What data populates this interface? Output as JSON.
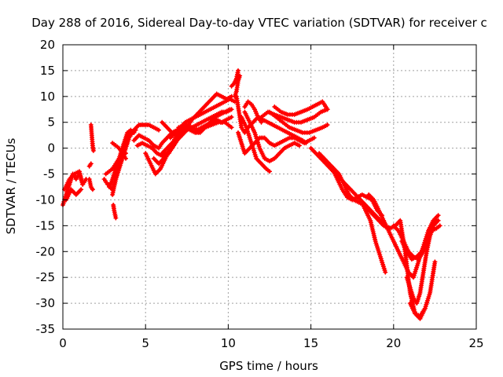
{
  "colors": {
    "series": "#ff0000",
    "grid": "#a0a0a0",
    "frame": "#000000",
    "background": "#ffffff"
  },
  "chart_data": {
    "type": "scatter",
    "marker": "plus",
    "title": "Day 288 of 2016, Sidereal Day-to-day VTEC variation (SDTVAR) for receiver c",
    "xlabel": "GPS time / hours",
    "ylabel": "SDTVAR / TECUs",
    "xlim": [
      0,
      25
    ],
    "ylim": [
      -35,
      20
    ],
    "x_ticks": [
      0,
      5,
      10,
      15,
      20,
      25
    ],
    "y_ticks": [
      -35,
      -30,
      -25,
      -20,
      -15,
      -10,
      -5,
      0,
      5,
      10,
      15,
      20
    ],
    "grid": true,
    "legend": "none",
    "series": [
      {
        "x": [
          0.0,
          0.2,
          0.4,
          0.6,
          0.8,
          1.0,
          1.2,
          1.4
        ],
        "y": [
          -11,
          -9,
          -7,
          -5,
          -6,
          -5,
          -7,
          -6
        ]
      },
      {
        "x": [
          0.1,
          0.4,
          0.7,
          1.0,
          1.2
        ],
        "y": [
          -8,
          -6,
          -5,
          -4.5,
          -7
        ]
      },
      {
        "x": [
          0.2,
          0.5,
          0.8,
          1.1
        ],
        "y": [
          -10,
          -8,
          -9,
          -8
        ]
      },
      {
        "x": [
          1.7,
          1.75,
          1.8,
          1.85
        ],
        "y": [
          4.5,
          2.5,
          0.5,
          -0.5
        ]
      },
      {
        "x": [
          1.6,
          1.7
        ],
        "y": [
          -3.5,
          -3
        ]
      },
      {
        "x": [
          1.6,
          1.7,
          1.8
        ],
        "y": [
          -6,
          -7.5,
          -8
        ]
      },
      {
        "x": [
          3.05,
          3.1,
          3.2
        ],
        "y": [
          -11,
          -12,
          -13.5
        ]
      },
      {
        "x": [
          2.5,
          2.7,
          2.9,
          3.1,
          3.3,
          3.5,
          3.7,
          3.9,
          4.1,
          4.3
        ],
        "y": [
          -6,
          -7,
          -7,
          -5,
          -3,
          -1,
          1,
          3,
          3.5,
          3
        ]
      },
      {
        "x": [
          2.8,
          3.0,
          3.2,
          3.4,
          3.6,
          3.8,
          4.0,
          4.2,
          4.4
        ],
        "y": [
          -7.5,
          -8,
          -6,
          -4,
          -2,
          0,
          2,
          3,
          3.5
        ]
      },
      {
        "x": [
          3.0,
          3.2,
          3.4,
          3.6,
          3.8,
          4.0,
          4.3,
          4.6,
          4.9,
          5.2,
          5.5,
          5.8
        ],
        "y": [
          -9,
          -6,
          -3,
          -1,
          1,
          2.5,
          3.5,
          4.5,
          4.5,
          4.5,
          4,
          3.5
        ]
      },
      {
        "x": [
          2.6,
          3.0,
          3.4,
          3.8
        ],
        "y": [
          -5,
          -4,
          -2,
          -1
        ]
      },
      {
        "x": [
          3.0,
          3.2,
          3.4,
          3.6,
          3.8
        ],
        "y": [
          1,
          0.5,
          0,
          -1,
          -2
        ]
      },
      {
        "x": [
          4.3,
          4.6,
          4.9,
          5.2,
          5.5,
          5.8,
          6.0,
          6.3,
          6.6,
          6.9,
          7.2,
          7.5,
          7.8,
          8.1,
          8.4,
          8.7,
          9.0,
          9.3,
          9.6,
          9.9,
          10.2
        ],
        "y": [
          1.5,
          2.5,
          2,
          1.5,
          0.5,
          0,
          1,
          2,
          3,
          3.5,
          4,
          4.5,
          4,
          3.5,
          4,
          4.5,
          5,
          5.5,
          5,
          5.5,
          6
        ]
      },
      {
        "x": [
          4.5,
          4.8,
          5.1,
          5.4,
          5.7,
          6.0,
          6.3,
          6.6,
          6.9,
          7.2,
          7.5,
          7.8,
          8.1,
          8.4,
          8.7,
          9.0,
          9.3,
          9.6,
          9.9,
          10.2
        ],
        "y": [
          0.5,
          1,
          0.5,
          0,
          -1,
          -1.5,
          -1,
          0,
          1.5,
          2.5,
          3.5,
          4,
          4.5,
          5,
          5.5,
          6,
          6.5,
          7,
          7,
          7.5
        ]
      },
      {
        "x": [
          5.0,
          5.3,
          5.6,
          5.9,
          6.2,
          6.5,
          6.8,
          7.1,
          7.4,
          7.7,
          8.0,
          8.3,
          8.6,
          8.9,
          9.2,
          9.5,
          9.8,
          10.1
        ],
        "y": [
          -1,
          -3,
          -5,
          -4,
          -2,
          0,
          2,
          3.5,
          4,
          3.5,
          3,
          3,
          4,
          5,
          6,
          6.5,
          7,
          7.5
        ]
      },
      {
        "x": [
          6.0,
          6.3,
          6.6,
          6.9,
          7.2,
          7.5,
          7.8,
          8.1,
          8.4,
          8.7,
          9.0,
          9.3,
          9.6,
          9.9,
          10.2
        ],
        "y": [
          5,
          4,
          3,
          2.5,
          3,
          4,
          5.5,
          6.5,
          7.5,
          8.5,
          9.5,
          10.5,
          10,
          9.5,
          10
        ]
      },
      {
        "x": [
          6.5,
          6.8,
          7.1,
          7.4,
          7.7,
          8.0,
          8.3,
          8.6,
          8.9,
          9.2,
          9.5,
          9.8,
          10.1,
          10.4
        ],
        "y": [
          2,
          3,
          4,
          5,
          5.5,
          6,
          6.5,
          7,
          7.5,
          8,
          8.5,
          9,
          9.5,
          9
        ]
      },
      {
        "x": [
          7.0,
          7.4,
          7.8,
          8.2,
          8.6,
          9.0,
          9.4,
          9.8,
          10.2
        ],
        "y": [
          4,
          4.5,
          4,
          3.5,
          4,
          4.5,
          5,
          5,
          4
        ]
      },
      {
        "x": [
          5.5,
          5.8,
          6.1,
          6.4,
          6.7,
          7.0
        ],
        "y": [
          -2,
          -3,
          -2,
          -1,
          0.5,
          2
        ]
      },
      {
        "x": [
          6.0,
          6.3,
          6.6,
          6.9,
          7.2,
          7.5
        ],
        "y": [
          -1,
          0,
          1,
          2,
          3,
          3.5
        ]
      },
      {
        "x": [
          10.2,
          10.35,
          10.5,
          10.6
        ],
        "y": [
          12,
          12.5,
          13.5,
          15
        ]
      },
      {
        "x": [
          10.4,
          10.5,
          10.6,
          10.7
        ],
        "y": [
          10,
          11,
          13,
          14
        ]
      },
      {
        "x": [
          10.5,
          10.6,
          10.7,
          10.8,
          11.0,
          11.2,
          11.5,
          11.8,
          12.1,
          12.4,
          12.7,
          13.0,
          13.3,
          13.6,
          13.9,
          14.2,
          14.5,
          14.7
        ],
        "y": [
          10,
          8,
          6,
          4,
          3,
          4,
          5,
          6,
          5.5,
          5,
          4.5,
          4,
          3.5,
          3,
          2.5,
          2,
          1.5,
          1
        ]
      },
      {
        "x": [
          10.6,
          10.8,
          11.0,
          11.3,
          11.6,
          11.9,
          12.2,
          12.5,
          12.8,
          13.1,
          13.4,
          13.7,
          14.0,
          14.3,
          14.6,
          14.9,
          15.2
        ],
        "y": [
          3,
          1,
          -1,
          0,
          1,
          2,
          2,
          1,
          0.5,
          1,
          1.5,
          2,
          2,
          1.5,
          1,
          1.5,
          2
        ]
      },
      {
        "x": [
          10.8,
          11.1,
          11.4,
          11.7,
          12.0,
          12.3,
          12.5
        ],
        "y": [
          6,
          4,
          1,
          -2,
          -3,
          -4,
          -4.5
        ]
      },
      {
        "x": [
          11.0,
          11.3,
          11.6,
          11.9,
          12.2,
          12.5,
          12.8,
          13.1,
          13.4,
          13.7,
          14.0,
          14.3
        ],
        "y": [
          7,
          5,
          3,
          0,
          -2,
          -2.5,
          -2,
          -1,
          0,
          0.5,
          1,
          0.5
        ]
      },
      {
        "x": [
          11.0,
          11.2,
          11.4,
          11.6,
          11.8,
          12.0
        ],
        "y": [
          8,
          9,
          8.5,
          7.5,
          6,
          5
        ]
      },
      {
        "x": [
          12.0,
          12.4,
          12.8,
          13.2,
          13.6,
          14.0,
          14.4,
          14.8,
          15.2,
          15.6,
          16.0
        ],
        "y": [
          6,
          7,
          6.5,
          6,
          5.5,
          5,
          5,
          5.5,
          6,
          7,
          7.5
        ]
      },
      {
        "x": [
          12.5,
          12.9,
          13.3,
          13.7,
          14.1,
          14.5,
          14.9,
          15.3,
          15.7,
          16.0
        ],
        "y": [
          7,
          6,
          5,
          4,
          3.5,
          3,
          3,
          3.5,
          4,
          4.5
        ]
      },
      {
        "x": [
          12.8,
          13.2,
          13.6,
          14.0,
          14.4,
          14.8,
          15.1,
          15.4,
          15.7,
          16.0
        ],
        "y": [
          8,
          7,
          6.5,
          6.5,
          7,
          7.5,
          8,
          8.5,
          9,
          7.5
        ]
      },
      {
        "x": [
          15.0,
          15.3,
          15.6,
          15.9,
          16.2,
          16.5,
          16.8,
          17.1,
          17.4,
          17.7,
          18.0,
          18.3,
          18.6,
          18.9,
          19.2,
          19.5
        ],
        "y": [
          0,
          -1,
          -2,
          -3,
          -4,
          -5,
          -6,
          -7,
          -8,
          -9,
          -10,
          -12,
          -14,
          -18,
          -21,
          -24
        ]
      },
      {
        "x": [
          15.5,
          15.8,
          16.1,
          16.4,
          16.7,
          17.0,
          17.3,
          17.6,
          17.9,
          18.2,
          18.5,
          18.8,
          19.1,
          19.4,
          19.7
        ],
        "y": [
          -1,
          -2,
          -3,
          -4,
          -5,
          -7,
          -9,
          -10,
          -10.5,
          -11,
          -12,
          -13,
          -14,
          -15,
          -15.5
        ]
      },
      {
        "x": [
          16.0,
          16.3,
          16.6,
          16.9,
          17.2,
          17.5,
          17.8,
          18.1,
          18.4,
          18.7,
          19.0,
          19.3
        ],
        "y": [
          -3,
          -4,
          -6,
          -8,
          -9.5,
          -10,
          -9.5,
          -9,
          -9.5,
          -10,
          -12,
          -13
        ]
      },
      {
        "x": [
          18.0,
          18.3,
          18.6,
          18.9,
          19.2,
          19.5,
          19.8,
          20.1,
          20.4,
          20.7,
          21.0,
          21.3,
          21.6,
          21.9
        ],
        "y": [
          -10,
          -11,
          -12,
          -13,
          -14,
          -15,
          -15.5,
          -15,
          -14,
          -20,
          -28,
          -32,
          -33,
          -31
        ]
      },
      {
        "x": [
          18.5,
          18.8,
          19.1,
          19.4,
          19.7,
          20.0,
          20.3,
          20.6,
          20.9,
          21.2,
          21.5,
          21.8,
          22.1,
          22.4,
          22.7
        ],
        "y": [
          -9,
          -10,
          -12,
          -14,
          -16,
          -18,
          -20,
          -22,
          -24,
          -25,
          -22,
          -19,
          -16,
          -14,
          -13
        ]
      },
      {
        "x": [
          20.0,
          20.3,
          20.6,
          20.9,
          21.2,
          21.5,
          21.8,
          22.1,
          22.4,
          22.7
        ],
        "y": [
          -15,
          -16,
          -18,
          -20,
          -21,
          -21.5,
          -20,
          -17,
          -15,
          -14
        ]
      },
      {
        "x": [
          20.5,
          20.8,
          21.1,
          21.4,
          21.7,
          22.0,
          22.3,
          22.6,
          22.8
        ],
        "y": [
          -18,
          -20,
          -21.5,
          -21,
          -20,
          -18,
          -16,
          -15.5,
          -15
        ]
      },
      {
        "x": [
          20.8,
          21.0,
          21.2,
          21.4,
          21.6,
          21.8,
          22.0,
          22.2,
          22.4,
          22.6
        ],
        "y": [
          -25,
          -27,
          -29,
          -30,
          -28,
          -24,
          -20,
          -17,
          -15,
          -14
        ]
      },
      {
        "x": [
          21.0,
          21.3,
          21.6,
          21.9,
          22.2,
          22.5
        ],
        "y": [
          -30,
          -32,
          -32.5,
          -31,
          -28,
          -22
        ]
      }
    ]
  }
}
